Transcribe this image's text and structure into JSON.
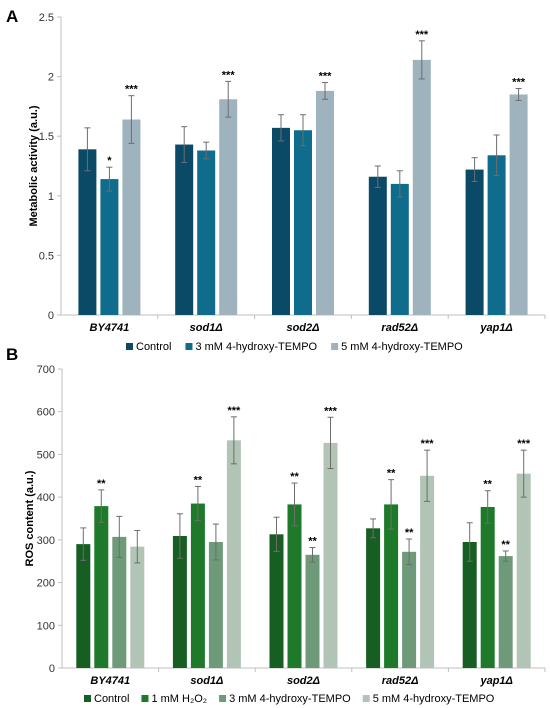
{
  "chart_data": [
    {
      "type": "bar",
      "panel": "A",
      "ylabel": "Metabolic activity (a.u.)",
      "ylim": [
        0,
        2.5
      ],
      "yticks": [
        "0",
        "0.5",
        "1",
        "1.5",
        "2",
        "2.5"
      ],
      "ytick_values": [
        0,
        0.5,
        1,
        1.5,
        2,
        2.5
      ],
      "categories": [
        "BY4741",
        "sod1Δ",
        "sod2Δ",
        "rad52Δ",
        "yap1Δ"
      ],
      "series": [
        {
          "name": "Control",
          "color": "#0b4a66",
          "values": [
            1.39,
            1.43,
            1.57,
            1.16,
            1.22
          ],
          "errors": [
            0.18,
            0.15,
            0.11,
            0.09,
            0.1
          ],
          "sig": [
            "",
            "",
            "",
            "",
            ""
          ]
        },
        {
          "name": "3 mM 4-hydroxy-TEMPO",
          "color": "#0f6c8c",
          "values": [
            1.14,
            1.38,
            1.55,
            1.1,
            1.34
          ],
          "errors": [
            0.1,
            0.07,
            0.13,
            0.11,
            0.17
          ],
          "sig": [
            "*",
            "",
            "",
            "",
            ""
          ]
        },
        {
          "name": "5 mM 4-hydroxy-TEMPO",
          "color": "#9fb3bf",
          "values": [
            1.64,
            1.81,
            1.88,
            2.14,
            1.85
          ],
          "errors": [
            0.2,
            0.15,
            0.07,
            0.16,
            0.05
          ],
          "sig": [
            "***",
            "***",
            "***",
            "***",
            "***"
          ]
        }
      ],
      "legend_position": "bottom",
      "grid": false
    },
    {
      "type": "bar",
      "panel": "B",
      "ylabel": "ROS content (a.u.)",
      "ylim": [
        0,
        700
      ],
      "yticks": [
        "0",
        "100",
        "200",
        "300",
        "400",
        "500",
        "600",
        "700"
      ],
      "ytick_values": [
        0,
        100,
        200,
        300,
        400,
        500,
        600,
        700
      ],
      "categories": [
        "BY4741",
        "sod1Δ",
        "sod2Δ",
        "rad52Δ",
        "yap1Δ"
      ],
      "series": [
        {
          "name": "Control",
          "color": "#175e23",
          "values": [
            290,
            309,
            313,
            327,
            295
          ],
          "errors": [
            38,
            52,
            40,
            22,
            45
          ],
          "sig": [
            "",
            "",
            "",
            "",
            ""
          ]
        },
        {
          "name": "1 mM H₂O₂",
          "color": "#1e7a2a",
          "values": [
            379,
            385,
            383,
            383,
            377
          ],
          "errors": [
            38,
            40,
            50,
            58,
            38
          ],
          "sig": [
            "**",
            "**",
            "**",
            "**",
            "**"
          ]
        },
        {
          "name": "3 mM 4-hydroxy-TEMPO",
          "color": "#6e9a7a",
          "values": [
            307,
            295,
            265,
            272,
            262
          ],
          "errors": [
            48,
            42,
            17,
            30,
            12
          ],
          "sig": [
            "",
            "",
            "**",
            "**",
            "**"
          ]
        },
        {
          "name": "5 mM 4-hydroxy-TEMPO",
          "color": "#b1c4b5",
          "values": [
            284,
            533,
            527,
            450,
            455
          ],
          "errors": [
            38,
            55,
            60,
            60,
            55
          ],
          "sig": [
            "",
            "***",
            "***",
            "***",
            "***"
          ]
        }
      ],
      "legend_position": "bottom",
      "grid": false
    }
  ]
}
